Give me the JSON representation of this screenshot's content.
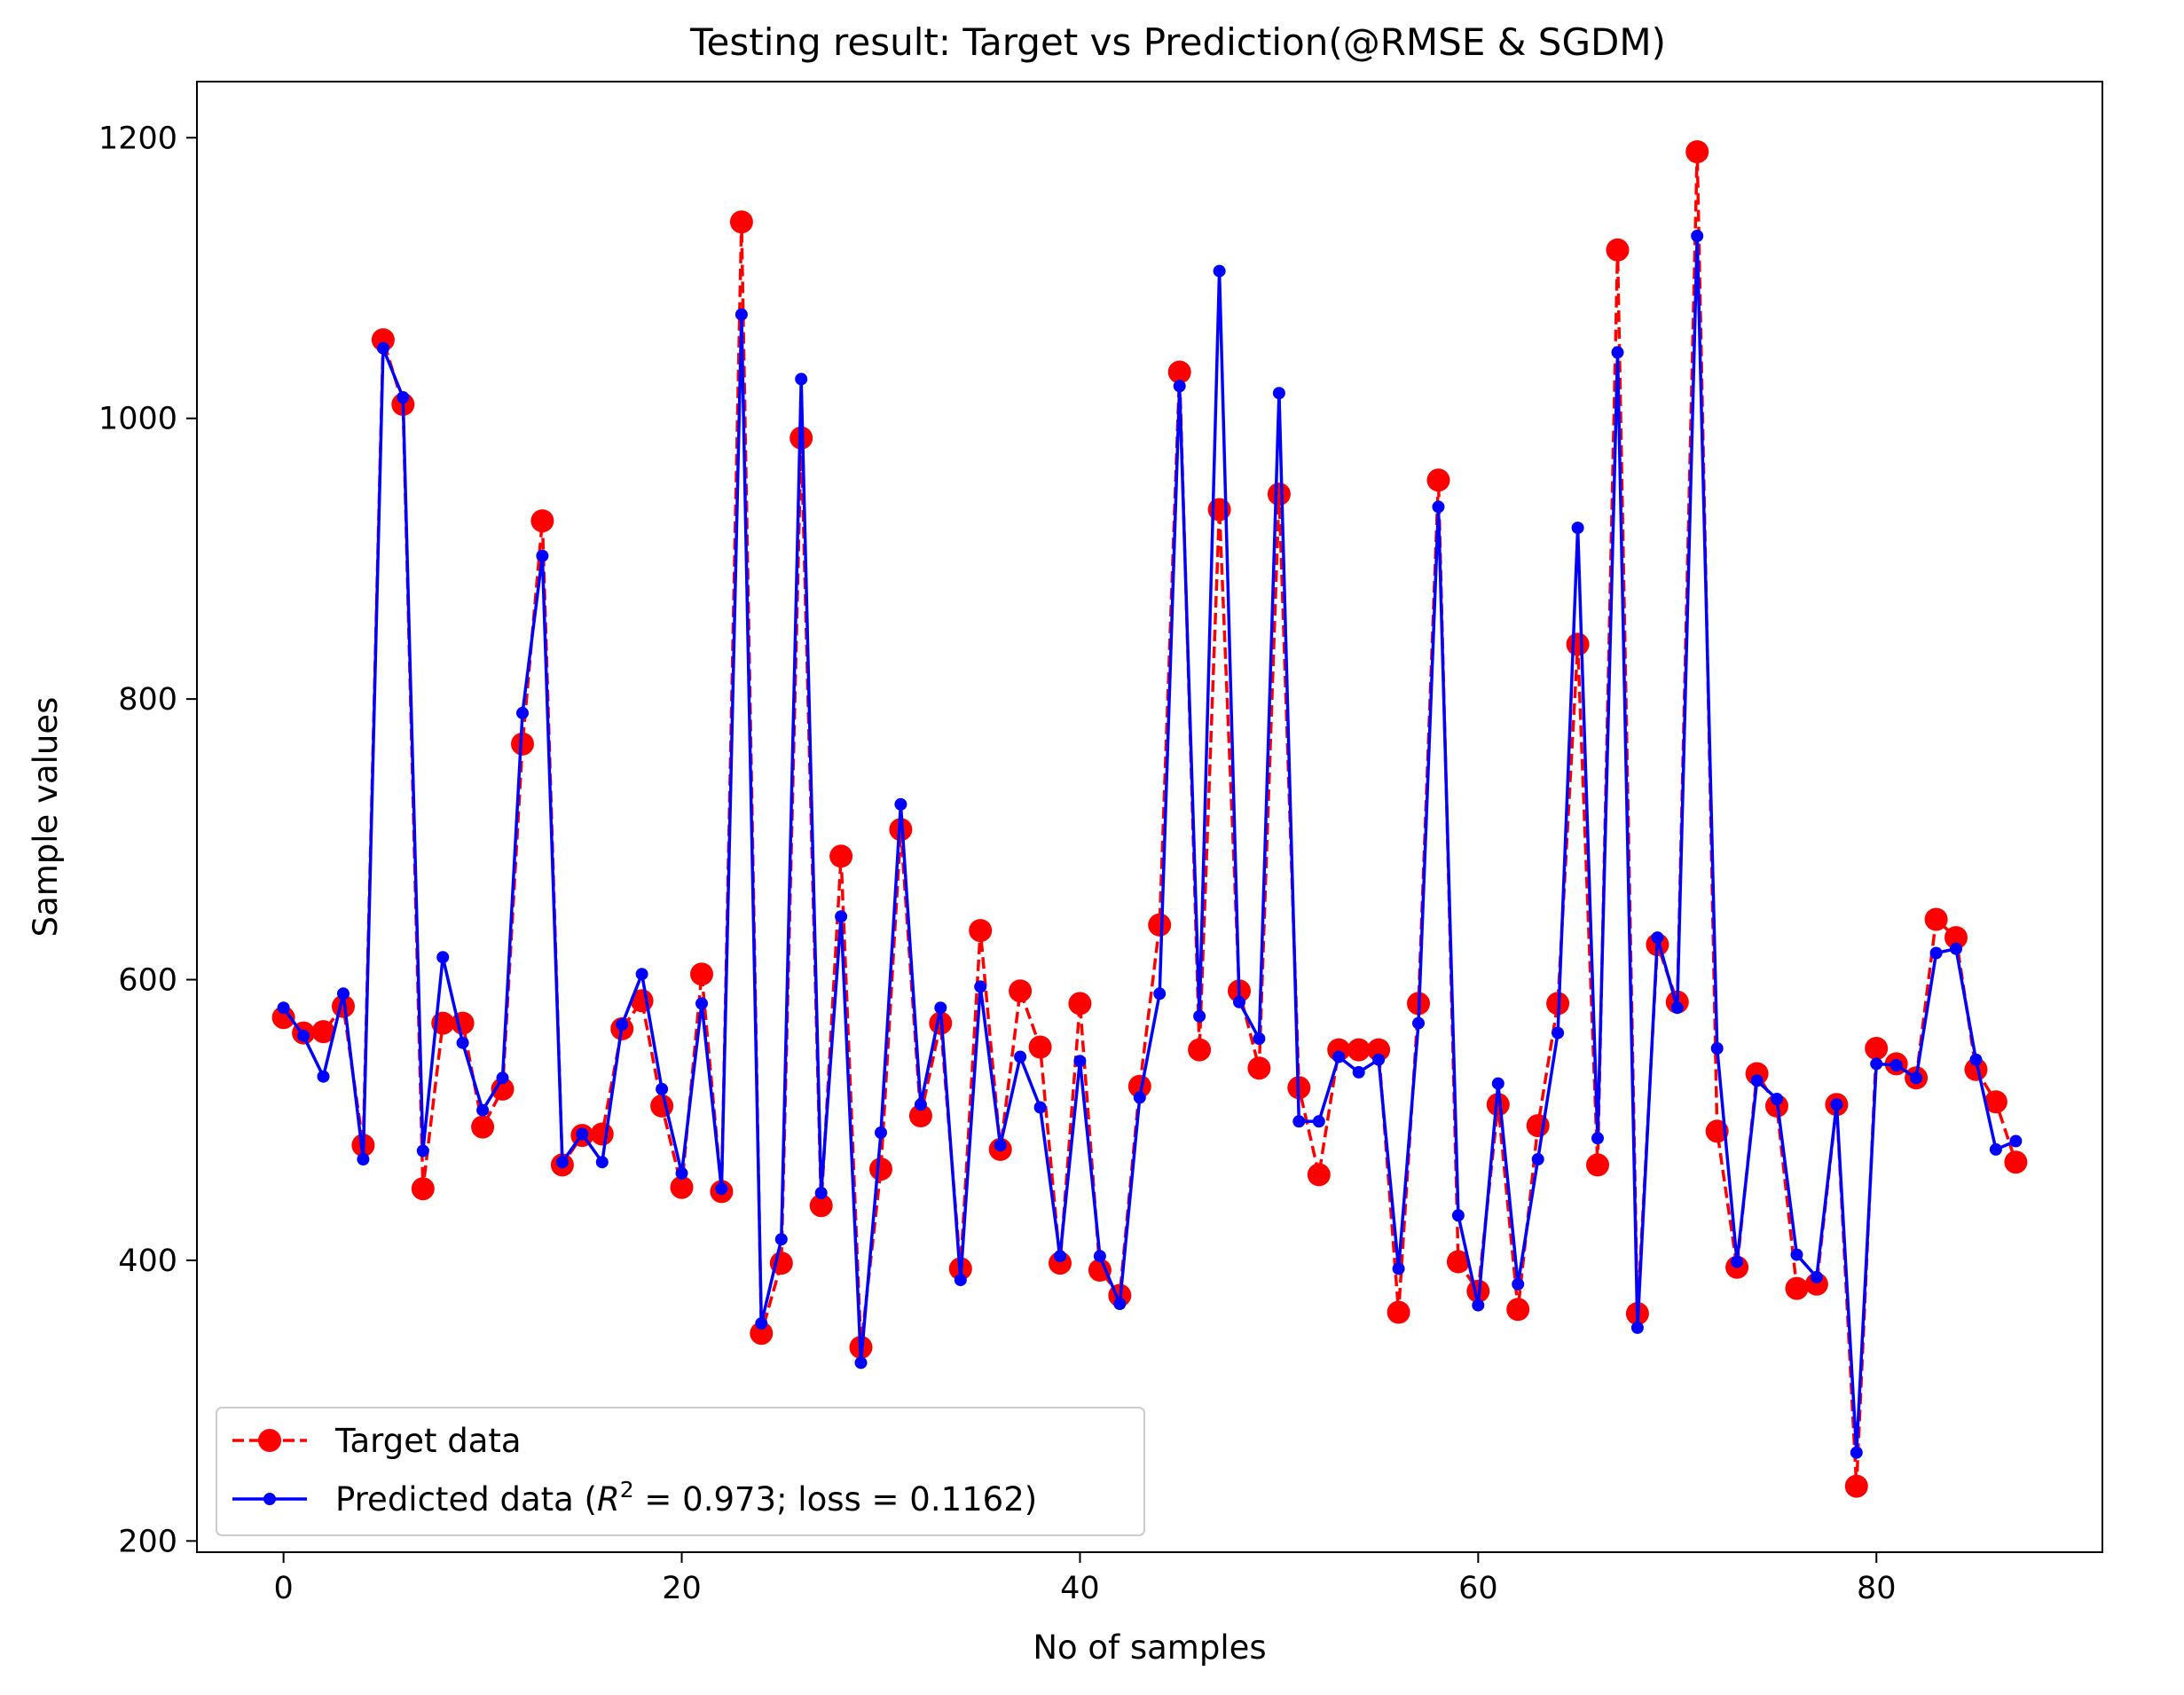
{
  "chart_data": {
    "type": "line",
    "title": "Testing result: Target vs Prediction(@RMSE & SGDM)",
    "xlabel": "No of samples",
    "ylabel": "Sample values",
    "xlim": [
      -4.35,
      91.35
    ],
    "ylim": [
      192,
      1240
    ],
    "xticks": [
      0,
      20,
      40,
      60,
      80
    ],
    "yticks": [
      200,
      400,
      600,
      800,
      1000,
      1200
    ],
    "xtick_labels": [
      "0",
      "20",
      "40",
      "60",
      "80"
    ],
    "ytick_labels": [
      "200",
      "400",
      "600",
      "800",
      "1000",
      "1200"
    ],
    "legend": {
      "placement": "lower-left",
      "entries": [
        {
          "label": "Target data"
        },
        {
          "label_prefix": "Predicted data (",
          "label_math": "R",
          "label_sup": "2",
          "label_suffix": " = 0.973; loss = 0.1162)"
        }
      ]
    },
    "x": [
      0,
      1,
      2,
      3,
      4,
      5,
      6,
      7,
      8,
      9,
      10,
      11,
      12,
      13,
      14,
      15,
      16,
      17,
      18,
      19,
      20,
      21,
      22,
      23,
      24,
      25,
      26,
      27,
      28,
      29,
      30,
      31,
      32,
      33,
      34,
      35,
      36,
      37,
      38,
      39,
      40,
      41,
      42,
      43,
      44,
      45,
      46,
      47,
      48,
      49,
      50,
      51,
      52,
      53,
      54,
      55,
      56,
      57,
      58,
      59,
      60,
      61,
      62,
      63,
      64,
      65,
      66,
      67,
      68,
      69,
      70,
      71,
      72,
      73,
      74,
      75,
      76,
      77,
      78,
      79,
      80,
      81,
      82,
      83,
      84,
      85,
      86,
      87
    ],
    "series": [
      {
        "name": "Target data",
        "color": "#ff0000",
        "style": "dashed",
        "marker": "large-circle",
        "values": [
          573,
          562,
          563,
          581,
          482,
          1056,
          1010,
          451,
          569,
          569,
          495,
          522,
          768,
          927,
          468,
          489,
          490,
          565,
          585,
          510,
          452,
          604,
          449,
          1140,
          348,
          398,
          986,
          439,
          688,
          338,
          465,
          707,
          503,
          569,
          394,
          635,
          479,
          592,
          552,
          398,
          583,
          393,
          375,
          524,
          639,
          1033,
          550,
          935,
          592,
          537,
          946,
          523,
          461,
          550,
          550,
          550,
          363,
          583,
          956,
          399,
          378,
          511,
          365,
          496,
          583,
          839,
          468,
          1120,
          362,
          625,
          584,
          1190,
          492,
          395,
          533,
          510,
          380,
          383,
          511,
          239,
          551,
          540,
          530,
          643,
          630,
          536,
          513,
          470
        ]
      },
      {
        "name": "Predicted data",
        "color": "#0000ff",
        "style": "solid",
        "marker": "small-circle",
        "values": [
          580,
          560,
          531,
          590,
          472,
          1050,
          1015,
          478,
          616,
          555,
          507,
          530,
          790,
          902,
          470,
          490,
          470,
          568,
          604,
          522,
          462,
          583,
          451,
          1074,
          355,
          415,
          1028,
          448,
          645,
          327,
          491,
          725,
          511,
          580,
          386,
          595,
          482,
          545,
          509,
          403,
          542,
          403,
          369,
          516,
          590,
          1023,
          574,
          1105,
          584,
          558,
          1018,
          499,
          499,
          545,
          534,
          543,
          394,
          569,
          937,
          432,
          368,
          526,
          383,
          472,
          562,
          922,
          487,
          1047,
          352,
          630,
          580,
          1130,
          551,
          399,
          528,
          515,
          404,
          388,
          511,
          263,
          540,
          539,
          530,
          619,
          622,
          543,
          479,
          485
        ]
      }
    ]
  }
}
